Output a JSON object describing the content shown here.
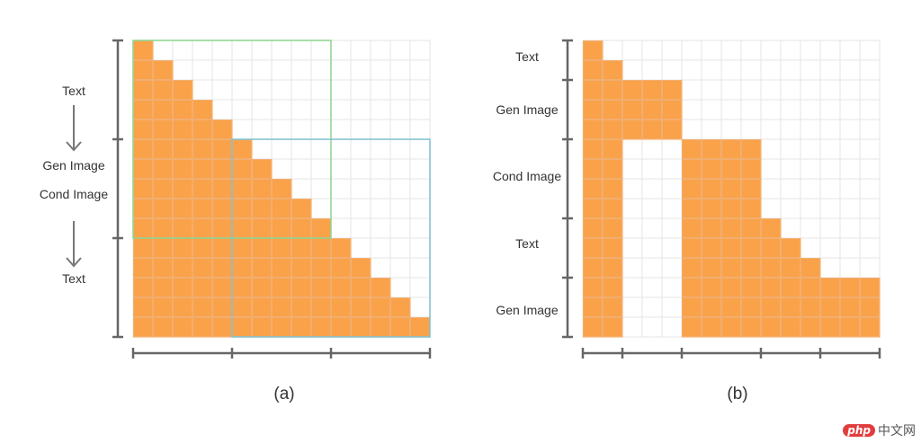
{
  "panels": [
    {
      "id": "a",
      "caption": "(a)",
      "labels": {
        "text_top": "Text",
        "gen_image": "Gen Image",
        "cond_image": "Cond Image",
        "text_bottom": "Text"
      },
      "grid_cells": 15,
      "mask_description": "causal staircase mask",
      "boxes": [
        {
          "name": "green-window",
          "color": "#8cd38c"
        },
        {
          "name": "blue-window",
          "color": "#7fbfd0"
        }
      ]
    },
    {
      "id": "b",
      "caption": "(b)",
      "labels": [
        "Text",
        "Gen Image",
        "Cond Image",
        "Text",
        "Gen Image"
      ],
      "grid_cells": 15
    }
  ],
  "colors": {
    "mask_fill": "#f9a24a",
    "grid_line": "#e6e6e6",
    "axis": "#666666",
    "cell_line": "#f0b27a"
  },
  "watermark": {
    "logo": "php",
    "text": "中文网"
  }
}
